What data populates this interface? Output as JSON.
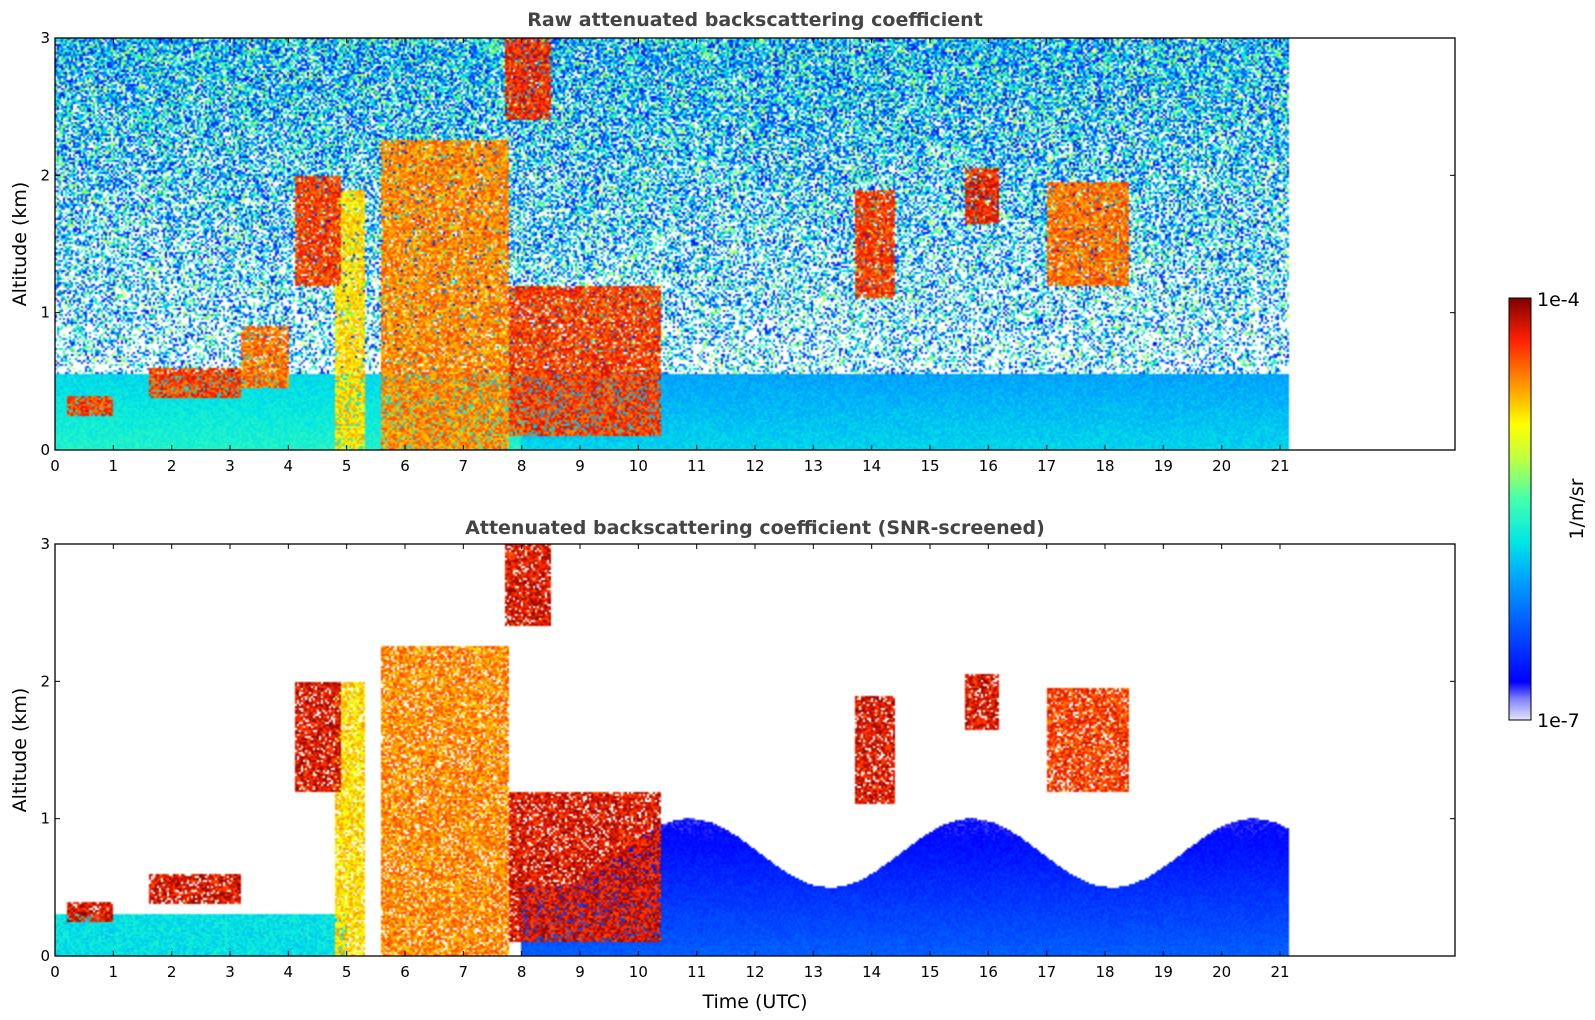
{
  "chart_data": [
    {
      "type": "heatmap",
      "id": "raw",
      "title": "Raw attenuated backscattering coefficient",
      "xlabel": "",
      "ylabel": "Altitude (km)",
      "xlim": [
        0,
        24
      ],
      "ylim": [
        0,
        3
      ],
      "xticks": [
        0,
        1,
        2,
        3,
        4,
        5,
        6,
        7,
        8,
        9,
        10,
        11,
        12,
        13,
        14,
        15,
        16,
        17,
        18,
        19,
        20,
        21
      ],
      "yticks": [
        0,
        1,
        2,
        3
      ],
      "data_end_hour": 21.15,
      "colorbar": {
        "label": "1/m/sr",
        "min_label": "1e-7",
        "max_label": "1e-4",
        "scale": "log"
      },
      "layers": [
        {
          "feature": "low cloud",
          "x": [
            0.2,
            1.0
          ],
          "y": [
            0.25,
            0.4
          ],
          "level": 0.95
        },
        {
          "feature": "boundary layer cloud top",
          "x": [
            1.6,
            3.2
          ],
          "y": [
            0.38,
            0.6
          ],
          "level": 0.95
        },
        {
          "feature": "boundary layer cloud top",
          "x": [
            3.2,
            4.0
          ],
          "y": [
            0.45,
            0.9
          ],
          "level": 0.9
        },
        {
          "feature": "elevated layer",
          "x": [
            4.1,
            4.9
          ],
          "y": [
            1.2,
            2.0
          ],
          "level": 0.95
        },
        {
          "feature": "precipitation",
          "x": [
            4.8,
            5.3
          ],
          "y": [
            0,
            1.9
          ],
          "level": 0.8
        },
        {
          "feature": "precipitation",
          "x": [
            5.6,
            7.8
          ],
          "y": [
            0,
            2.25
          ],
          "level": 0.88
        },
        {
          "feature": "elevated layer",
          "x": [
            7.7,
            8.5
          ],
          "y": [
            2.4,
            3.0
          ],
          "level": 0.97
        },
        {
          "feature": "cloud",
          "x": [
            7.8,
            10.4
          ],
          "y": [
            0.1,
            1.2
          ],
          "level": 0.95
        },
        {
          "feature": "cloud",
          "x": [
            13.7,
            14.4
          ],
          "y": [
            1.1,
            1.9
          ],
          "level": 0.95
        },
        {
          "feature": "cloud",
          "x": [
            15.6,
            16.2
          ],
          "y": [
            1.65,
            2.05
          ],
          "level": 0.97
        },
        {
          "feature": "cloud",
          "x": [
            17.0,
            18.4
          ],
          "y": [
            1.2,
            1.95
          ],
          "level": 0.9
        }
      ]
    },
    {
      "type": "heatmap",
      "id": "snr",
      "title": "Attenuated backscattering coefficient (SNR-screened)",
      "xlabel": "Time (UTC)",
      "ylabel": "Altitude (km)",
      "xlim": [
        0,
        24
      ],
      "ylim": [
        0,
        3
      ],
      "xticks": [
        0,
        1,
        2,
        3,
        4,
        5,
        6,
        7,
        8,
        9,
        10,
        11,
        12,
        13,
        14,
        15,
        16,
        17,
        18,
        19,
        20,
        21
      ],
      "yticks": [
        0,
        1,
        2,
        3
      ],
      "data_end_hour": 21.15,
      "colorbar": {
        "label": "1/m/sr",
        "min_label": "1e-7",
        "max_label": "1e-4",
        "scale": "log"
      },
      "layers": [
        {
          "feature": "low cloud",
          "x": [
            0.2,
            1.0
          ],
          "y": [
            0.25,
            0.4
          ],
          "level": 1.0
        },
        {
          "feature": "boundary layer cloud top",
          "x": [
            1.6,
            3.2
          ],
          "y": [
            0.38,
            0.6
          ],
          "level": 1.0
        },
        {
          "feature": "elevated layer",
          "x": [
            4.1,
            4.9
          ],
          "y": [
            1.2,
            2.0
          ],
          "level": 1.0
        },
        {
          "feature": "precipitation",
          "x": [
            4.8,
            5.3
          ],
          "y": [
            0,
            2.0
          ],
          "level": 0.8
        },
        {
          "feature": "precipitation",
          "x": [
            5.6,
            7.8
          ],
          "y": [
            0,
            2.25
          ],
          "level": 0.88
        },
        {
          "feature": "elevated layer",
          "x": [
            7.7,
            8.5
          ],
          "y": [
            2.4,
            3.0
          ],
          "level": 1.0
        },
        {
          "feature": "cloud",
          "x": [
            7.8,
            10.4
          ],
          "y": [
            0.1,
            1.2
          ],
          "level": 1.0
        },
        {
          "feature": "cloud",
          "x": [
            13.7,
            14.4
          ],
          "y": [
            1.1,
            1.9
          ],
          "level": 1.0
        },
        {
          "feature": "cloud",
          "x": [
            15.6,
            16.2
          ],
          "y": [
            1.65,
            2.05
          ],
          "level": 1.0
        },
        {
          "feature": "cloud",
          "x": [
            17.0,
            18.4
          ],
          "y": [
            1.2,
            1.95
          ],
          "level": 0.95
        }
      ]
    }
  ]
}
